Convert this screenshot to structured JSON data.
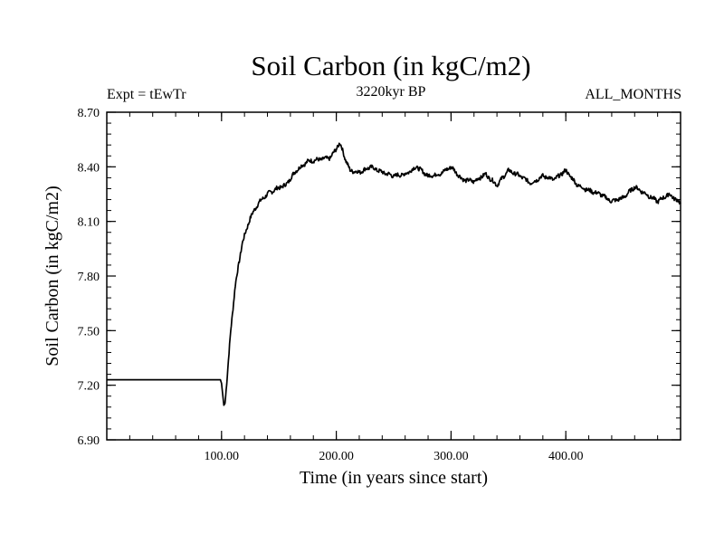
{
  "chart_data": {
    "type": "line",
    "title": "Soil Carbon (in kgC/m2)",
    "subtitle": "3220kyr BP",
    "left_label": "Expt = tEwTr",
    "right_label": "ALL_MONTHS",
    "xlabel": "Time (in years since start)",
    "ylabel": "Soil Carbon (in kgC/m2)",
    "xlim": [
      0,
      500
    ],
    "ylim": [
      6.9,
      8.7
    ],
    "x_ticks": [
      100,
      200,
      300,
      400
    ],
    "x_tick_labels": [
      "100.00",
      "200.00",
      "300.00",
      "400.00"
    ],
    "y_ticks": [
      6.9,
      7.2,
      7.5,
      7.8,
      8.1,
      8.4,
      8.7
    ],
    "y_tick_labels": [
      "6.90",
      "7.20",
      "7.50",
      "7.80",
      "8.10",
      "8.40",
      "8.70"
    ],
    "grid": false,
    "series": [
      {
        "name": "Soil Carbon",
        "color": "#000000",
        "x": [
          0,
          99,
          100,
          101,
          102,
          103,
          105,
          108,
          112,
          118,
          125,
          132,
          140,
          148,
          156,
          165,
          175,
          185,
          195,
          200,
          203,
          205,
          208,
          212,
          220,
          230,
          240,
          250,
          260,
          270,
          280,
          290,
          300,
          310,
          320,
          330,
          340,
          350,
          360,
          370,
          380,
          390,
          400,
          410,
          420,
          430,
          440,
          450,
          460,
          470,
          480,
          490,
          500
        ],
        "values": [
          7.23,
          7.23,
          7.21,
          7.15,
          7.09,
          7.1,
          7.25,
          7.5,
          7.75,
          7.98,
          8.12,
          8.2,
          8.25,
          8.28,
          8.3,
          8.38,
          8.43,
          8.44,
          8.45,
          8.5,
          8.53,
          8.5,
          8.44,
          8.38,
          8.37,
          8.4,
          8.37,
          8.35,
          8.36,
          8.4,
          8.35,
          8.36,
          8.4,
          8.33,
          8.32,
          8.36,
          8.3,
          8.38,
          8.35,
          8.31,
          8.35,
          8.33,
          8.38,
          8.3,
          8.27,
          8.25,
          8.21,
          8.23,
          8.29,
          8.25,
          8.21,
          8.25,
          8.2
        ]
      }
    ]
  }
}
